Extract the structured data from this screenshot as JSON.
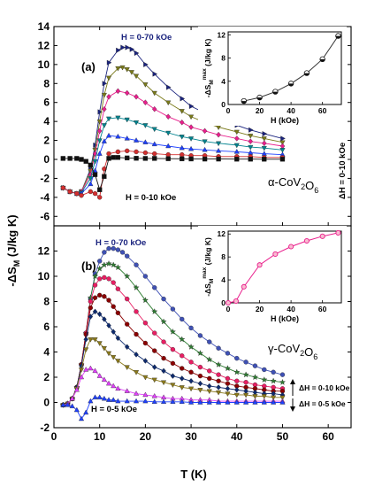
{
  "figure": {
    "ylabel": "-ΔS_M (J/kg K)",
    "xlabel": "T (K)"
  },
  "chart_data": [
    {
      "id": "a",
      "type": "line",
      "panel_label": "(a)",
      "compound": "α-CoV2O6",
      "annotations": [
        "H = 0-70 kOe",
        "H = 0-10 kOe",
        "ΔH = 0-10 kOe"
      ],
      "xlim": [
        0,
        65
      ],
      "ylim": [
        -7,
        14
      ],
      "xticks": [
        0,
        10,
        20,
        30,
        40,
        50,
        60
      ],
      "yticks": [
        -6,
        -4,
        -2,
        0,
        2,
        4,
        6,
        8,
        10,
        12,
        14
      ],
      "series": [
        {
          "color": "#1a237e",
          "marker": "tri-right",
          "x": [
            2,
            3.5,
            5,
            6,
            8,
            9,
            10,
            11,
            12,
            14,
            15,
            16,
            17,
            18,
            20,
            22,
            25,
            28,
            30,
            33,
            36,
            40,
            43,
            46,
            50
          ],
          "y": [
            -3.0,
            -3.4,
            -3.6,
            -3.4,
            -1.0,
            1.5,
            5.0,
            8.0,
            10.2,
            11.5,
            11.8,
            11.8,
            11.6,
            11.2,
            10.0,
            9.0,
            7.6,
            6.4,
            5.6,
            4.9,
            4.3,
            3.6,
            3.1,
            2.7,
            2.2
          ]
        },
        {
          "color": "#7a7a1a",
          "marker": "tri-down",
          "x": [
            2,
            3.5,
            5,
            6,
            8,
            9,
            10,
            11,
            12,
            14,
            15,
            16,
            17,
            18,
            20,
            22,
            25,
            28,
            30,
            33,
            36,
            40,
            43,
            46,
            50
          ],
          "y": [
            -3.0,
            -3.4,
            -3.6,
            -3.4,
            -1.2,
            1.0,
            4.0,
            6.8,
            8.6,
            9.6,
            9.7,
            9.5,
            9.2,
            8.8,
            7.9,
            7.0,
            6.0,
            5.1,
            4.5,
            3.9,
            3.4,
            2.9,
            2.5,
            2.2,
            1.8
          ]
        },
        {
          "color": "#e91e8c",
          "marker": "diamond",
          "x": [
            2,
            3.5,
            5,
            6,
            8,
            9,
            10,
            11,
            12,
            14,
            16,
            18,
            20,
            22,
            25,
            28,
            30,
            33,
            36,
            40,
            43,
            46,
            50
          ],
          "y": [
            -3.0,
            -3.4,
            -3.6,
            -3.4,
            -1.6,
            0.6,
            3.0,
            5.3,
            6.6,
            7.2,
            7.0,
            6.6,
            6.0,
            5.3,
            4.5,
            3.9,
            3.4,
            3.0,
            2.6,
            2.2,
            1.9,
            1.7,
            1.4
          ]
        },
        {
          "color": "#00838f",
          "marker": "tri-down",
          "x": [
            2,
            3.5,
            5,
            6,
            8,
            9,
            10,
            11,
            12,
            14,
            16,
            18,
            20,
            22,
            25,
            28,
            30,
            33,
            36,
            40,
            43,
            46,
            50
          ],
          "y": [
            -3.0,
            -3.4,
            -3.6,
            -3.5,
            -2.0,
            -0.2,
            2.0,
            3.6,
            4.3,
            4.4,
            4.2,
            3.9,
            3.6,
            3.2,
            2.8,
            2.4,
            2.2,
            1.9,
            1.7,
            1.5,
            1.3,
            1.2,
            1.0
          ]
        },
        {
          "color": "#1e40ff",
          "marker": "tri-up",
          "x": [
            2,
            3.5,
            5,
            6,
            8,
            9,
            10,
            11,
            12,
            14,
            16,
            18,
            20,
            22,
            25,
            28,
            30,
            33,
            36,
            40,
            43,
            46,
            50
          ],
          "y": [
            -3.0,
            -3.4,
            -3.6,
            -3.6,
            -2.6,
            -1.2,
            0.6,
            1.9,
            2.5,
            2.4,
            2.2,
            2.0,
            1.8,
            1.6,
            1.4,
            1.2,
            1.1,
            1.0,
            0.9,
            0.8,
            0.7,
            0.6,
            0.5
          ]
        },
        {
          "color": "#d32f2f",
          "marker": "circle",
          "x": [
            2,
            3.5,
            5,
            6,
            8,
            9,
            10,
            11,
            12,
            14,
            16,
            18,
            20,
            22,
            25,
            28,
            30,
            33,
            36,
            40,
            43,
            46,
            50
          ],
          "y": [
            -3.0,
            -3.4,
            -3.6,
            -3.8,
            -3.4,
            -3.6,
            -4.0,
            -1.0,
            0.6,
            0.8,
            0.9,
            0.8,
            0.7,
            0.6,
            0.5,
            0.5,
            0.4,
            0.4,
            0.3,
            0.3,
            0.3,
            0.2,
            0.2
          ]
        },
        {
          "color": "#111111",
          "marker": "square",
          "x": [
            2,
            3.5,
            5,
            6,
            7,
            8,
            9,
            10,
            11,
            12,
            13,
            14,
            16,
            18,
            20,
            22,
            25,
            28,
            30,
            33,
            36,
            40,
            43,
            46,
            50
          ],
          "y": [
            0.1,
            0.1,
            0.1,
            0.0,
            -0.2,
            -0.6,
            -1.6,
            -3.2,
            -1.8,
            0.1,
            0.2,
            0.2,
            0.15,
            0.12,
            0.1,
            0.1,
            0.08,
            0.06,
            0.05,
            0.04,
            0.04,
            0.03,
            0.03,
            0.02,
            0.02
          ]
        }
      ],
      "inset": {
        "type": "line",
        "xlabel": "H (kOe)",
        "ylabel": "-ΔS_M^max (J/kg K)",
        "xlim": [
          0,
          72
        ],
        "ylim": [
          0,
          12.5
        ],
        "xticks": [
          0,
          20,
          40,
          60
        ],
        "yticks": [
          0,
          4,
          8,
          12
        ],
        "x": [
          10,
          20,
          30,
          40,
          50,
          60,
          70
        ],
        "y": [
          0.6,
          1.2,
          2.2,
          3.6,
          5.4,
          7.8,
          11.8
        ]
      }
    },
    {
      "id": "b",
      "type": "line",
      "panel_label": "(b)",
      "compound": "γ-CoV2O6",
      "annotations": [
        "H = 0-70 kOe",
        "H = 0-5 kOe",
        "ΔH = 0-10 kOe",
        "ΔH = 0-5 kOe"
      ],
      "xlim": [
        0,
        65
      ],
      "ylim": [
        -2,
        14
      ],
      "xticks": [
        0,
        10,
        20,
        30,
        40,
        50,
        60
      ],
      "yticks": [
        -2,
        0,
        2,
        4,
        6,
        8,
        10,
        12,
        14
      ],
      "series": [
        {
          "color": "#3f51b5",
          "marker": "circle",
          "x": [
            2,
            3,
            4,
            5,
            6,
            7,
            8,
            9,
            10,
            11,
            12,
            13,
            14,
            15,
            16,
            18,
            20,
            22,
            24,
            26,
            28,
            30,
            32,
            34,
            36,
            38,
            40,
            42,
            44,
            46,
            48,
            50
          ],
          "y": [
            -0.2,
            -0.1,
            0.3,
            1.2,
            3.0,
            5.5,
            8.2,
            10.2,
            11.2,
            11.9,
            12.2,
            12.2,
            12.1,
            11.9,
            11.6,
            10.9,
            10.0,
            9.1,
            8.2,
            7.4,
            6.6,
            5.9,
            5.3,
            4.8,
            4.3,
            3.9,
            3.5,
            3.2,
            2.9,
            2.6,
            2.4,
            2.2
          ]
        },
        {
          "color": "#2e7d32",
          "marker": "star",
          "x": [
            2,
            3,
            4,
            5,
            6,
            7,
            8,
            9,
            10,
            11,
            12,
            13,
            14,
            16,
            18,
            20,
            22,
            24,
            26,
            28,
            30,
            32,
            34,
            36,
            38,
            40,
            42,
            44,
            46,
            48,
            50
          ],
          "y": [
            -0.2,
            -0.1,
            0.3,
            1.2,
            3.0,
            5.5,
            8.3,
            10.0,
            10.6,
            10.9,
            11.0,
            10.9,
            10.7,
            10.0,
            9.1,
            8.1,
            7.2,
            6.4,
            5.6,
            5.0,
            4.4,
            3.9,
            3.4,
            3.0,
            2.7,
            2.4,
            2.2,
            2.0,
            1.8,
            1.7,
            1.6
          ]
        },
        {
          "color": "#e91e63",
          "marker": "circle",
          "x": [
            2,
            3,
            4,
            5,
            6,
            7,
            8,
            9,
            10,
            11,
            12,
            13,
            14,
            16,
            18,
            20,
            22,
            24,
            26,
            28,
            30,
            32,
            34,
            36,
            38,
            40,
            42,
            44,
            46,
            48,
            50
          ],
          "y": [
            -0.2,
            -0.1,
            0.3,
            1.2,
            3.0,
            5.5,
            8.0,
            9.3,
            9.8,
            9.9,
            9.8,
            9.5,
            9.0,
            8.2,
            7.2,
            6.3,
            5.5,
            4.8,
            4.2,
            3.7,
            3.2,
            2.8,
            2.5,
            2.2,
            1.9,
            1.7,
            1.6,
            1.4,
            1.3,
            1.2,
            1.1
          ]
        },
        {
          "color": "#8b0000",
          "marker": "circle",
          "x": [
            2,
            3,
            4,
            5,
            6,
            7,
            8,
            9,
            10,
            11,
            12,
            13,
            14,
            16,
            18,
            20,
            22,
            24,
            26,
            28,
            30,
            32,
            34,
            36,
            38,
            40,
            42,
            44,
            46,
            48,
            50
          ],
          "y": [
            -0.2,
            -0.1,
            0.3,
            1.2,
            3.0,
            5.4,
            7.5,
            8.3,
            8.5,
            8.4,
            8.1,
            7.6,
            7.1,
            6.2,
            5.4,
            4.7,
            4.1,
            3.5,
            3.1,
            2.7,
            2.4,
            2.1,
            1.9,
            1.7,
            1.5,
            1.3,
            1.2,
            1.1,
            1.0,
            0.9,
            0.9
          ]
        },
        {
          "color": "#0d2a6e",
          "marker": "diamond",
          "x": [
            2,
            3,
            4,
            5,
            6,
            7,
            8,
            9,
            10,
            11,
            12,
            13,
            14,
            16,
            18,
            20,
            22,
            24,
            26,
            28,
            30,
            32,
            34,
            36,
            38,
            40,
            42,
            44,
            46,
            48,
            50
          ],
          "y": [
            -0.2,
            -0.1,
            0.3,
            1.2,
            2.9,
            5.0,
            6.8,
            7.2,
            7.0,
            6.6,
            6.1,
            5.6,
            5.1,
            4.4,
            3.8,
            3.3,
            2.8,
            2.5,
            2.1,
            1.9,
            1.7,
            1.5,
            1.3,
            1.2,
            1.1,
            1.0,
            0.9,
            0.8,
            0.7,
            0.7,
            0.6
          ]
        },
        {
          "color": "#8c7a1a",
          "marker": "tri-down",
          "x": [
            2,
            3,
            4,
            5,
            6,
            7,
            8,
            9,
            10,
            11,
            12,
            13,
            14,
            16,
            18,
            20,
            22,
            24,
            26,
            28,
            30,
            32,
            34,
            36,
            38,
            40,
            42,
            44,
            46,
            48,
            50
          ],
          "y": [
            -0.2,
            -0.1,
            0.3,
            1.1,
            2.6,
            4.2,
            5.0,
            5.0,
            4.7,
            4.3,
            3.9,
            3.6,
            3.3,
            2.8,
            2.4,
            2.0,
            1.8,
            1.6,
            1.4,
            1.2,
            1.1,
            1.0,
            0.9,
            0.8,
            0.7,
            0.6,
            0.6,
            0.5,
            0.5,
            0.4,
            0.4
          ]
        },
        {
          "color": "#e040fb",
          "marker": "tri-up",
          "x": [
            2,
            3,
            4,
            5,
            6,
            7,
            8,
            9,
            10,
            11,
            12,
            13,
            14,
            16,
            18,
            20,
            22,
            24,
            26,
            28,
            30,
            32,
            34,
            36,
            38,
            40,
            42,
            44,
            46,
            48,
            50
          ],
          "y": [
            -0.2,
            -0.1,
            0.3,
            1.0,
            2.0,
            2.6,
            2.7,
            2.5,
            2.1,
            1.8,
            1.5,
            1.3,
            1.1,
            0.9,
            0.7,
            0.6,
            0.5,
            0.4,
            0.3,
            0.3,
            0.2,
            0.2,
            0.2,
            0.1,
            0.1,
            0.1,
            0.1,
            0.1,
            0.1,
            0.1,
            0.1
          ]
        },
        {
          "color": "#1e40ff",
          "marker": "tri-up",
          "x": [
            2,
            3,
            4,
            5,
            6,
            7,
            8,
            9,
            10,
            11,
            12,
            13,
            14,
            16,
            18,
            20,
            22,
            24,
            26,
            28,
            30,
            32,
            34,
            36,
            38,
            40,
            42,
            44,
            46,
            48,
            50
          ],
          "y": [
            -0.2,
            -0.2,
            -0.3,
            -0.6,
            -1.3,
            -0.8,
            0.1,
            0.4,
            0.4,
            0.3,
            0.2,
            0.2,
            0.1,
            0.1,
            0.1,
            0.1,
            0.05,
            0.05,
            0.05,
            0.05,
            0.0,
            0.0,
            0.0,
            0.0,
            0.0,
            0.0,
            0.0,
            0.0,
            0.0,
            0.0,
            0.0
          ]
        }
      ],
      "inset": {
        "type": "line",
        "xlabel": "H (kOe)",
        "ylabel": "-ΔS_M^max (J/kg K)",
        "xlim": [
          0,
          72
        ],
        "ylim": [
          0,
          12.5
        ],
        "xticks": [
          0,
          20,
          40,
          60
        ],
        "yticks": [
          0,
          4,
          8,
          12
        ],
        "x": [
          0,
          5,
          10,
          20,
          30,
          40,
          50,
          60,
          70
        ],
        "y": [
          0.0,
          0.3,
          2.8,
          6.6,
          8.5,
          9.8,
          10.8,
          11.6,
          12.2
        ]
      }
    }
  ]
}
